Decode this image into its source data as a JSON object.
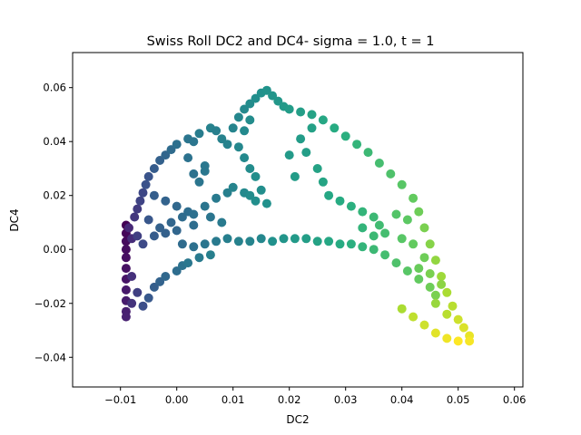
{
  "chart_data": {
    "type": "scatter",
    "title": "Swiss Roll DC2 and DC4- sigma = 1.0, t = 1",
    "xlabel": "DC2",
    "ylabel": "DC4",
    "xlim": [
      -0.0185,
      0.0615
    ],
    "ylim": [
      -0.051,
      0.073
    ],
    "xticks": [
      -0.01,
      0.0,
      0.01,
      0.02,
      0.03,
      0.04,
      0.05,
      0.06
    ],
    "yticks": [
      -0.04,
      -0.02,
      0.0,
      0.02,
      0.04,
      0.06
    ],
    "xtick_labels": [
      "−0.01",
      "0.00",
      "0.01",
      "0.02",
      "0.03",
      "0.04",
      "0.05",
      "0.06"
    ],
    "ytick_labels": [
      "−0.04",
      "−0.02",
      "0.00",
      "0.02",
      "0.04",
      "0.06"
    ],
    "grid": false,
    "colormap": "viridis",
    "points": [
      [
        -0.009,
        0.009,
        0.0
      ],
      [
        -0.009,
        0.006,
        0.02
      ],
      [
        -0.009,
        0.003,
        0.03
      ],
      [
        -0.009,
        0.0,
        0.04
      ],
      [
        -0.009,
        -0.003,
        0.05
      ],
      [
        -0.009,
        -0.007,
        0.06
      ],
      [
        -0.009,
        -0.011,
        0.07
      ],
      [
        -0.009,
        -0.015,
        0.09
      ],
      [
        -0.009,
        -0.019,
        0.1
      ],
      [
        -0.009,
        -0.023,
        0.11
      ],
      [
        -0.009,
        -0.025,
        0.12
      ],
      [
        -0.0085,
        0.008,
        0.14
      ],
      [
        -0.008,
        0.004,
        0.15
      ],
      [
        -0.008,
        -0.01,
        0.16
      ],
      [
        -0.008,
        -0.02,
        0.17
      ],
      [
        -0.0075,
        0.012,
        0.18
      ],
      [
        -0.007,
        0.015,
        0.19
      ],
      [
        -0.007,
        0.005,
        0.2
      ],
      [
        -0.007,
        -0.016,
        0.2
      ],
      [
        -0.0065,
        0.018,
        0.21
      ],
      [
        -0.006,
        0.021,
        0.22
      ],
      [
        -0.006,
        0.002,
        0.23
      ],
      [
        -0.006,
        -0.021,
        0.24
      ],
      [
        -0.0055,
        0.024,
        0.25
      ],
      [
        -0.005,
        0.027,
        0.26
      ],
      [
        -0.005,
        0.011,
        0.27
      ],
      [
        -0.005,
        -0.018,
        0.28
      ],
      [
        -0.004,
        0.03,
        0.29
      ],
      [
        -0.004,
        -0.014,
        0.3
      ],
      [
        -0.003,
        0.033,
        0.31
      ],
      [
        -0.003,
        -0.012,
        0.32
      ],
      [
        -0.002,
        0.035,
        0.33
      ],
      [
        -0.002,
        -0.01,
        0.34
      ],
      [
        -0.001,
        0.037,
        0.35
      ],
      [
        0.0,
        -0.008,
        0.36
      ],
      [
        0.0,
        0.039,
        0.37
      ],
      [
        0.001,
        -0.006,
        0.38
      ],
      [
        0.002,
        0.041,
        0.39
      ],
      [
        0.002,
        -0.005,
        0.4
      ],
      [
        0.004,
        -0.003,
        0.41
      ],
      [
        0.004,
        0.043,
        0.42
      ],
      [
        0.006,
        -0.002,
        0.43
      ],
      [
        0.006,
        0.045,
        0.44
      ],
      [
        -0.004,
        0.02,
        0.3
      ],
      [
        -0.002,
        0.018,
        0.32
      ],
      [
        0.0,
        0.016,
        0.34
      ],
      [
        0.002,
        0.014,
        0.36
      ],
      [
        -0.003,
        0.008,
        0.31
      ],
      [
        -0.001,
        0.01,
        0.33
      ],
      [
        0.001,
        0.012,
        0.35
      ],
      [
        0.003,
        0.013,
        0.37
      ],
      [
        0.005,
        0.016,
        0.39
      ],
      [
        0.007,
        0.019,
        0.41
      ],
      [
        0.009,
        0.021,
        0.43
      ],
      [
        0.01,
        0.023,
        0.45
      ],
      [
        -0.004,
        0.005,
        0.29
      ],
      [
        -0.002,
        0.006,
        0.31
      ],
      [
        0.0,
        0.007,
        0.33
      ],
      [
        0.003,
        0.009,
        0.36
      ],
      [
        0.006,
        0.012,
        0.39
      ],
      [
        0.008,
        0.01,
        0.41
      ],
      [
        0.001,
        0.002,
        0.35
      ],
      [
        0.003,
        0.001,
        0.37
      ],
      [
        0.005,
        0.002,
        0.39
      ],
      [
        0.007,
        0.003,
        0.41
      ],
      [
        0.009,
        0.004,
        0.43
      ],
      [
        0.011,
        0.003,
        0.44
      ],
      [
        0.013,
        0.003,
        0.45
      ],
      [
        0.015,
        0.004,
        0.46
      ],
      [
        0.003,
        0.028,
        0.38
      ],
      [
        0.002,
        0.034,
        0.38
      ],
      [
        0.003,
        0.04,
        0.39
      ],
      [
        0.005,
        0.031,
        0.4
      ],
      [
        0.004,
        0.025,
        0.39
      ],
      [
        0.005,
        0.029,
        0.4
      ],
      [
        0.007,
        0.044,
        0.43
      ],
      [
        0.008,
        0.041,
        0.44
      ],
      [
        0.009,
        0.039,
        0.44
      ],
      [
        0.01,
        0.045,
        0.45
      ],
      [
        0.011,
        0.049,
        0.46
      ],
      [
        0.012,
        0.052,
        0.47
      ],
      [
        0.013,
        0.054,
        0.48
      ],
      [
        0.014,
        0.056,
        0.49
      ],
      [
        0.015,
        0.058,
        0.5
      ],
      [
        0.016,
        0.059,
        0.51
      ],
      [
        0.017,
        0.057,
        0.52
      ],
      [
        0.018,
        0.055,
        0.53
      ],
      [
        0.019,
        0.053,
        0.54
      ],
      [
        0.02,
        0.052,
        0.55
      ],
      [
        0.012,
        0.044,
        0.47
      ],
      [
        0.013,
        0.048,
        0.48
      ],
      [
        0.011,
        0.038,
        0.46
      ],
      [
        0.012,
        0.034,
        0.47
      ],
      [
        0.013,
        0.03,
        0.48
      ],
      [
        0.014,
        0.027,
        0.49
      ],
      [
        0.015,
        0.022,
        0.49
      ],
      [
        0.012,
        0.021,
        0.47
      ],
      [
        0.013,
        0.02,
        0.48
      ],
      [
        0.014,
        0.018,
        0.49
      ],
      [
        0.016,
        0.017,
        0.5
      ],
      [
        0.017,
        0.003,
        0.5
      ],
      [
        0.019,
        0.004,
        0.52
      ],
      [
        0.021,
        0.004,
        0.54
      ],
      [
        0.023,
        0.004,
        0.56
      ],
      [
        0.025,
        0.003,
        0.58
      ],
      [
        0.027,
        0.003,
        0.6
      ],
      [
        0.029,
        0.002,
        0.62
      ],
      [
        0.031,
        0.002,
        0.64
      ],
      [
        0.033,
        0.001,
        0.66
      ],
      [
        0.035,
        0.0,
        0.68
      ],
      [
        0.037,
        -0.002,
        0.7
      ],
      [
        0.039,
        -0.005,
        0.72
      ],
      [
        0.041,
        -0.008,
        0.74
      ],
      [
        0.043,
        -0.011,
        0.76
      ],
      [
        0.045,
        -0.014,
        0.78
      ],
      [
        0.046,
        -0.017,
        0.8
      ],
      [
        0.022,
        0.051,
        0.56
      ],
      [
        0.024,
        0.05,
        0.58
      ],
      [
        0.026,
        0.048,
        0.6
      ],
      [
        0.028,
        0.045,
        0.62
      ],
      [
        0.03,
        0.042,
        0.64
      ],
      [
        0.032,
        0.039,
        0.66
      ],
      [
        0.034,
        0.036,
        0.68
      ],
      [
        0.036,
        0.032,
        0.7
      ],
      [
        0.038,
        0.028,
        0.72
      ],
      [
        0.04,
        0.024,
        0.74
      ],
      [
        0.042,
        0.019,
        0.76
      ],
      [
        0.043,
        0.014,
        0.78
      ],
      [
        0.044,
        0.008,
        0.8
      ],
      [
        0.045,
        0.002,
        0.82
      ],
      [
        0.046,
        -0.004,
        0.84
      ],
      [
        0.047,
        -0.01,
        0.86
      ],
      [
        0.048,
        -0.016,
        0.88
      ],
      [
        0.049,
        -0.021,
        0.9
      ],
      [
        0.05,
        -0.026,
        0.93
      ],
      [
        0.051,
        -0.029,
        0.95
      ],
      [
        0.052,
        -0.032,
        0.97
      ],
      [
        0.052,
        -0.034,
        0.99
      ],
      [
        0.05,
        -0.034,
        1.0
      ],
      [
        0.048,
        -0.033,
        0.98
      ],
      [
        0.046,
        -0.031,
        0.96
      ],
      [
        0.044,
        -0.028,
        0.93
      ],
      [
        0.042,
        -0.025,
        0.91
      ],
      [
        0.04,
        -0.022,
        0.88
      ],
      [
        0.025,
        0.03,
        0.58
      ],
      [
        0.026,
        0.025,
        0.59
      ],
      [
        0.027,
        0.02,
        0.6
      ],
      [
        0.029,
        0.018,
        0.62
      ],
      [
        0.031,
        0.016,
        0.64
      ],
      [
        0.033,
        0.014,
        0.66
      ],
      [
        0.035,
        0.012,
        0.68
      ],
      [
        0.036,
        0.009,
        0.69
      ],
      [
        0.037,
        0.006,
        0.7
      ],
      [
        0.035,
        0.005,
        0.68
      ],
      [
        0.033,
        0.008,
        0.66
      ],
      [
        0.023,
        0.036,
        0.56
      ],
      [
        0.024,
        0.045,
        0.57
      ],
      [
        0.022,
        0.041,
        0.55
      ],
      [
        0.021,
        0.027,
        0.55
      ],
      [
        0.02,
        0.035,
        0.54
      ],
      [
        0.039,
        0.013,
        0.73
      ],
      [
        0.041,
        0.011,
        0.75
      ],
      [
        0.04,
        0.004,
        0.74
      ],
      [
        0.042,
        0.002,
        0.76
      ],
      [
        0.044,
        -0.003,
        0.78
      ],
      [
        0.043,
        -0.007,
        0.77
      ],
      [
        0.045,
        -0.009,
        0.8
      ],
      [
        0.047,
        -0.013,
        0.83
      ],
      [
        0.046,
        -0.02,
        0.85
      ],
      [
        0.048,
        -0.024,
        0.9
      ]
    ]
  }
}
